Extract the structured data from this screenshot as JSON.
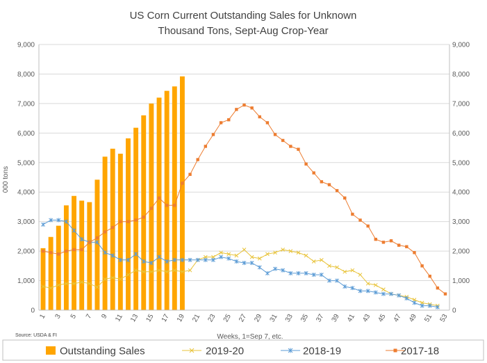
{
  "chart_data": {
    "type": "bar",
    "title": "US Corn Current Outstanding Sales for Unknown",
    "subtitle": "Thousand Tons, Sept-Aug Crop-Year",
    "ylabel": "000 tons",
    "xlabel": "Weeks, 1=Sep 7, etc.",
    "source": "Source: USDA & FI",
    "ylim": [
      0,
      9000
    ],
    "yticks": [
      "0",
      "1,000",
      "2,000",
      "3,000",
      "4,000",
      "5,000",
      "6,000",
      "7,000",
      "8,000",
      "9,000"
    ],
    "yticks_right": [
      "0",
      "1,000",
      "2,000",
      "3,000",
      "4,000",
      "5,000",
      "6,000",
      "7,000",
      "8,000",
      "9,000"
    ],
    "xlim": [
      1,
      53
    ],
    "xticks": [
      "1",
      "3",
      "5",
      "7",
      "9",
      "11",
      "13",
      "15",
      "17",
      "19",
      "21",
      "23",
      "25",
      "27",
      "29",
      "31",
      "33",
      "35",
      "37",
      "39",
      "41",
      "43",
      "45",
      "47",
      "49",
      "51",
      "53"
    ],
    "legend_position": "bottom",
    "series": [
      {
        "name": "Outstanding Sales",
        "kind": "bar",
        "color": "#ffa500",
        "x": [
          1,
          2,
          3,
          4,
          5,
          6,
          7,
          8,
          9,
          10,
          11,
          12,
          13,
          14,
          15,
          16,
          17,
          18,
          19
        ],
        "values": [
          2100,
          2480,
          2860,
          3550,
          3870,
          3710,
          3660,
          4420,
          5200,
          5470,
          5300,
          5820,
          6180,
          6600,
          7000,
          7200,
          7430,
          7580,
          7920
        ]
      },
      {
        "name": "2019-20",
        "kind": "line",
        "color": "#e8c33a",
        "marker": "x",
        "x": [
          1,
          2,
          3,
          4,
          5,
          6,
          7,
          8,
          9,
          10,
          11,
          12,
          13,
          14,
          15,
          16,
          17,
          18,
          19,
          20,
          21,
          22,
          23,
          24,
          25,
          26,
          27,
          28,
          29,
          30,
          31,
          32,
          33,
          34,
          35,
          36,
          37,
          38,
          39,
          40,
          41,
          42,
          43,
          44,
          45,
          46,
          47,
          48,
          49,
          50,
          51,
          52
        ],
        "values": [
          800,
          750,
          850,
          900,
          900,
          950,
          900,
          780,
          1050,
          1100,
          1050,
          1200,
          1350,
          1300,
          1300,
          1350,
          1300,
          1350,
          1300,
          1350,
          1700,
          1800,
          1800,
          1950,
          1900,
          1850,
          2050,
          1800,
          1750,
          1900,
          1950,
          2050,
          2000,
          1950,
          1850,
          1650,
          1700,
          1500,
          1450,
          1300,
          1350,
          1200,
          900,
          850,
          700,
          550,
          500,
          450,
          350,
          250,
          200,
          150
        ]
      },
      {
        "name": "2018-19",
        "kind": "line",
        "color": "#5b9bd5",
        "marker": "star",
        "x": [
          1,
          2,
          3,
          4,
          5,
          6,
          7,
          8,
          9,
          10,
          11,
          12,
          13,
          14,
          15,
          16,
          17,
          18,
          19,
          20,
          21,
          22,
          23,
          24,
          25,
          26,
          27,
          28,
          29,
          30,
          31,
          32,
          33,
          34,
          35,
          36,
          37,
          38,
          39,
          40,
          41,
          42,
          43,
          44,
          45,
          46,
          47,
          48,
          49,
          50,
          51,
          52
        ],
        "values": [
          2900,
          3050,
          3050,
          3000,
          2700,
          2400,
          2300,
          2300,
          1950,
          1850,
          1700,
          1700,
          1900,
          1650,
          1600,
          1800,
          1650,
          1700,
          1700,
          1700,
          1700,
          1700,
          1700,
          1800,
          1750,
          1650,
          1600,
          1600,
          1450,
          1250,
          1400,
          1350,
          1250,
          1250,
          1250,
          1200,
          1200,
          1000,
          1000,
          800,
          750,
          650,
          650,
          600,
          550,
          550,
          500,
          400,
          250,
          150,
          150,
          100
        ]
      },
      {
        "name": "2017-18",
        "kind": "line",
        "color": "#ed7d31",
        "marker": "square",
        "x": [
          1,
          2,
          3,
          4,
          5,
          6,
          7,
          8,
          9,
          10,
          11,
          12,
          13,
          14,
          15,
          16,
          17,
          18,
          19,
          20,
          21,
          22,
          23,
          24,
          25,
          26,
          27,
          28,
          29,
          30,
          31,
          32,
          33,
          34,
          35,
          36,
          37,
          38,
          39,
          40,
          41,
          42,
          43,
          44,
          45,
          46,
          47,
          48,
          49,
          50,
          51,
          52,
          53
        ],
        "values": [
          2000,
          1950,
          1900,
          2000,
          2050,
          2050,
          2300,
          2450,
          2650,
          2800,
          3000,
          3000,
          3050,
          3150,
          3450,
          3800,
          3550,
          3550,
          4300,
          4600,
          5100,
          5550,
          5950,
          6350,
          6450,
          6800,
          6950,
          6850,
          6550,
          6350,
          5950,
          5750,
          5550,
          5450,
          4950,
          4650,
          4350,
          4250,
          4050,
          3800,
          3250,
          3050,
          2850,
          2400,
          2300,
          2350,
          2200,
          2150,
          1950,
          1500,
          1150,
          750,
          550
        ]
      }
    ]
  }
}
